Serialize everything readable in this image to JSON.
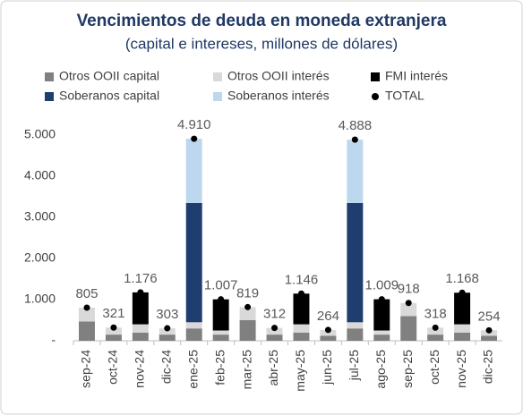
{
  "chart_data": {
    "type": "bar",
    "stacked": true,
    "title": "Vencimientos de deuda en moneda extranjera",
    "subtitle": "(capital e intereses, millones de dólares)",
    "categories": [
      "sep-24",
      "oct-24",
      "nov-24",
      "dic-24",
      "ene-25",
      "feb-25",
      "mar-25",
      "abr-25",
      "may-25",
      "jun-25",
      "jul-25",
      "ago-25",
      "sep-25",
      "oct-25",
      "nov-25",
      "dic-25"
    ],
    "series": [
      {
        "name": "Otros OOII capital",
        "color": "#808080",
        "values": [
          470,
          150,
          200,
          150,
          300,
          150,
          500,
          150,
          200,
          120,
          300,
          150,
          600,
          150,
          200,
          120
        ]
      },
      {
        "name": "Otros OOII interés",
        "color": "#d9d9d9",
        "values": [
          335,
          171,
          200,
          153,
          150,
          100,
          319,
          162,
          200,
          144,
          150,
          100,
          318,
          168,
          200,
          134
        ]
      },
      {
        "name": "FMI interés",
        "color": "#000000",
        "values": [
          null,
          null,
          776,
          null,
          null,
          757,
          null,
          null,
          746,
          null,
          null,
          759,
          null,
          null,
          768,
          null
        ]
      },
      {
        "name": "Soberanos capital",
        "color": "#1f3d6e",
        "values": [
          null,
          null,
          null,
          null,
          2900,
          null,
          null,
          null,
          null,
          null,
          2900,
          null,
          null,
          null,
          null,
          null
        ]
      },
      {
        "name": "Soberanos interés",
        "color": "#bdd7ee",
        "values": [
          null,
          null,
          null,
          null,
          1560,
          null,
          null,
          null,
          null,
          null,
          1538,
          null,
          null,
          null,
          null,
          null
        ]
      },
      {
        "name": "TOTAL",
        "color": "#000000",
        "style": "dot",
        "values": [
          805,
          321,
          1176,
          303,
          4910,
          1007,
          819,
          312,
          1146,
          264,
          4888,
          1009,
          918,
          318,
          1168,
          254
        ],
        "value_labels": [
          "805",
          "321",
          "1.176",
          "303",
          "4.910",
          "1.007",
          "819",
          "312",
          "1.146",
          "264",
          "4.888",
          "1.009",
          "918",
          "318",
          "1.168",
          "254"
        ]
      }
    ],
    "ylim": [
      0,
      5000
    ],
    "yticks": [
      {
        "value": 0,
        "label": "-"
      },
      {
        "value": 1000,
        "label": "1.000"
      },
      {
        "value": 2000,
        "label": "2.000"
      },
      {
        "value": 3000,
        "label": "3.000"
      },
      {
        "value": 4000,
        "label": "4.000"
      },
      {
        "value": 5000,
        "label": "5.000"
      }
    ],
    "grid": false
  }
}
